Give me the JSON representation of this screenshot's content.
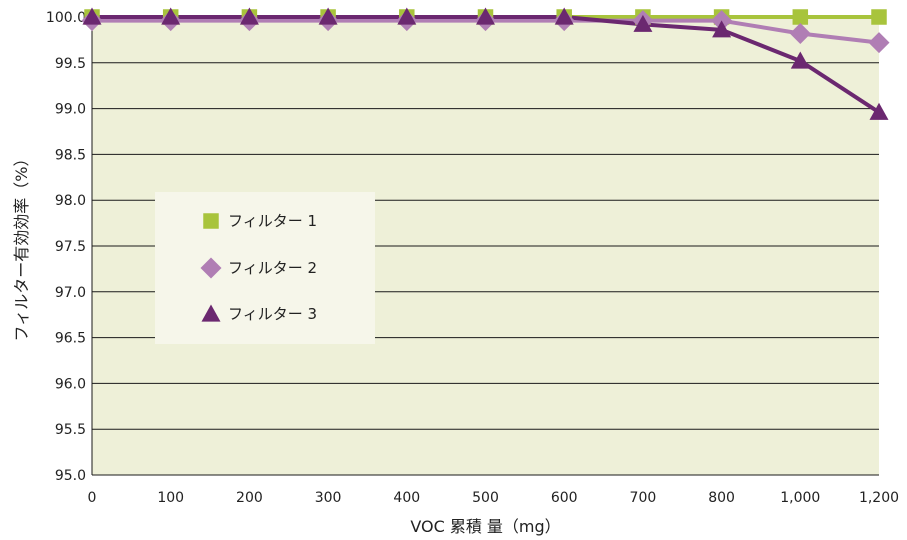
{
  "chart_data": {
    "type": "line",
    "title": "",
    "xlabel": "VOC 累積 量（mg）",
    "ylabel": "フィルター有効効率（%）",
    "categories": [
      "0",
      "100",
      "200",
      "300",
      "400",
      "500",
      "600",
      "700",
      "800",
      "1,000",
      "1,200"
    ],
    "ylim": [
      95.0,
      100.0
    ],
    "yticks": [
      "95.0",
      "95.5",
      "96.0",
      "96.5",
      "97.0",
      "97.5",
      "98.0",
      "98.5",
      "99.0",
      "99.5",
      "100.0"
    ],
    "grid": true,
    "legend_position": "left-center",
    "plot_background": "#eef0d8",
    "series": [
      {
        "name": "フィルター 1",
        "marker": "square",
        "color": "#a8c43c",
        "values": [
          100.0,
          100.0,
          100.0,
          100.0,
          100.0,
          100.0,
          100.0,
          100.0,
          100.0,
          100.0,
          100.0
        ]
      },
      {
        "name": "フィルター 2",
        "marker": "diamond",
        "color": "#b07eb4",
        "values": [
          99.96,
          99.96,
          99.96,
          99.96,
          99.96,
          99.96,
          99.96,
          99.96,
          99.96,
          99.82,
          99.72
        ]
      },
      {
        "name": "フィルター 3",
        "marker": "triangle",
        "color": "#6b2870",
        "values": [
          100.0,
          100.0,
          100.0,
          100.0,
          100.0,
          100.0,
          100.0,
          99.92,
          99.86,
          99.52,
          98.96
        ]
      }
    ]
  }
}
